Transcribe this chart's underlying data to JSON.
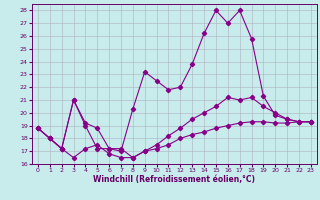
{
  "xlabel": "Windchill (Refroidissement éolien,°C)",
  "xlim": [
    -0.5,
    23.5
  ],
  "ylim": [
    16,
    28.5
  ],
  "yticks": [
    16,
    17,
    18,
    19,
    20,
    21,
    22,
    23,
    24,
    25,
    26,
    27,
    28
  ],
  "xticks": [
    0,
    1,
    2,
    3,
    4,
    5,
    6,
    7,
    8,
    9,
    10,
    11,
    12,
    13,
    14,
    15,
    16,
    17,
    18,
    19,
    20,
    21,
    22,
    23
  ],
  "bg_color": "#c8ecec",
  "line_color": "#880088",
  "grid_color": "#b0b0c0",
  "line1_x": [
    0,
    1,
    2,
    3,
    4,
    5,
    6,
    7,
    8,
    9,
    10,
    11,
    12,
    13,
    14,
    15,
    16,
    17,
    18,
    19,
    20,
    21,
    22,
    23
  ],
  "line1_y": [
    18.8,
    18.0,
    17.2,
    21.0,
    19.0,
    17.2,
    17.2,
    17.0,
    20.3,
    23.2,
    22.5,
    21.8,
    22.0,
    23.8,
    26.2,
    28.0,
    27.0,
    28.0,
    25.8,
    21.3,
    19.8,
    19.5,
    19.3,
    19.3
  ],
  "line2_x": [
    0,
    1,
    2,
    3,
    4,
    5,
    6,
    7,
    8,
    9,
    10,
    11,
    12,
    13,
    14,
    15,
    16,
    17,
    18,
    19,
    20,
    21,
    22,
    23
  ],
  "line2_y": [
    18.8,
    18.0,
    17.2,
    21.0,
    19.2,
    18.8,
    17.2,
    17.2,
    16.5,
    17.0,
    17.5,
    18.2,
    18.8,
    19.5,
    20.0,
    20.5,
    21.2,
    21.0,
    21.2,
    20.5,
    20.0,
    19.5,
    19.3,
    19.3
  ],
  "line3_x": [
    0,
    1,
    2,
    3,
    4,
    5,
    6,
    7,
    8,
    9,
    10,
    11,
    12,
    13,
    14,
    15,
    16,
    17,
    18,
    19,
    20,
    21,
    22,
    23
  ],
  "line3_y": [
    18.8,
    18.0,
    17.2,
    16.5,
    17.2,
    17.5,
    16.8,
    16.5,
    16.5,
    17.0,
    17.2,
    17.5,
    18.0,
    18.3,
    18.5,
    18.8,
    19.0,
    19.2,
    19.3,
    19.3,
    19.2,
    19.2,
    19.3,
    19.3
  ]
}
